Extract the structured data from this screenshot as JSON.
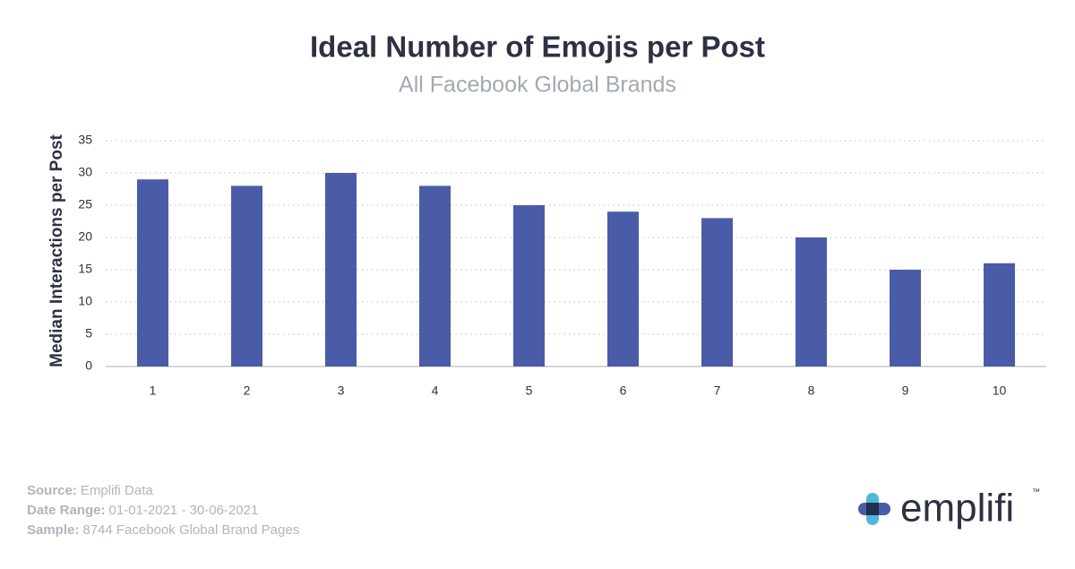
{
  "chart_data": {
    "type": "bar",
    "title": "Ideal Number of Emojis per Post",
    "subtitle": "All Facebook Global Brands",
    "y_label": "Median Interactions per Post",
    "categories": [
      "1",
      "2",
      "3",
      "4",
      "5",
      "6",
      "7",
      "8",
      "9",
      "10"
    ],
    "values": [
      29,
      28,
      30,
      28,
      25,
      24,
      23,
      20,
      15,
      16
    ],
    "color": "#4a5ca8",
    "ylim": [
      0,
      35
    ],
    "yticks": [
      0,
      5,
      10,
      15,
      20,
      25,
      30,
      35
    ],
    "grid": true
  },
  "footer": [
    {
      "label": "Source:",
      "value": "Emplifi Data"
    },
    {
      "label": "Date Range:",
      "value": "01-01-2021 - 30-06-2021"
    },
    {
      "label": "Sample:",
      "value": "8744 Facebook Global Brand Pages"
    }
  ],
  "logo": {
    "text": "emplifi",
    "trademark": "™"
  }
}
